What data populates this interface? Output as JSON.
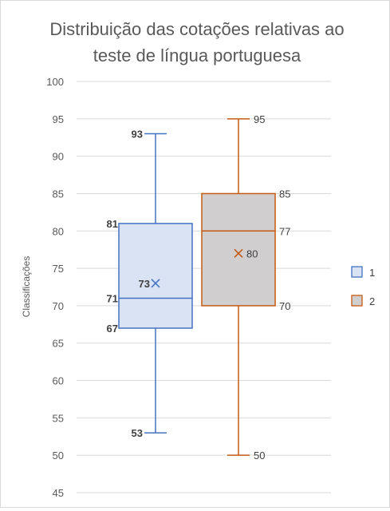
{
  "chart_data": {
    "type": "box",
    "title_lines": [
      "Distribuição das cotações relativas ao",
      "teste de língua portuguesa"
    ],
    "ylabel": "Classificações",
    "ylim": [
      45,
      100
    ],
    "yticks": [
      45,
      50,
      55,
      60,
      65,
      70,
      75,
      80,
      85,
      90,
      95,
      100
    ],
    "grid": true,
    "legend_position": "right",
    "series": [
      {
        "name": "1",
        "min": 53,
        "q1": 67,
        "median": 71,
        "mean": 73,
        "q3": 81,
        "max": 93,
        "stroke": "#4472c4",
        "fill": "#dae3f3",
        "labels": [
          "93",
          "81",
          "73",
          "71",
          "67",
          "53"
        ]
      },
      {
        "name": "2",
        "min": 50,
        "q1": 70,
        "median": 80,
        "mean": 77,
        "q3": 85,
        "max": 95,
        "stroke": "#c55a11",
        "fill": "#d0cece",
        "labels": [
          "95",
          "85",
          "80",
          "77",
          "70",
          "50"
        ]
      }
    ]
  }
}
